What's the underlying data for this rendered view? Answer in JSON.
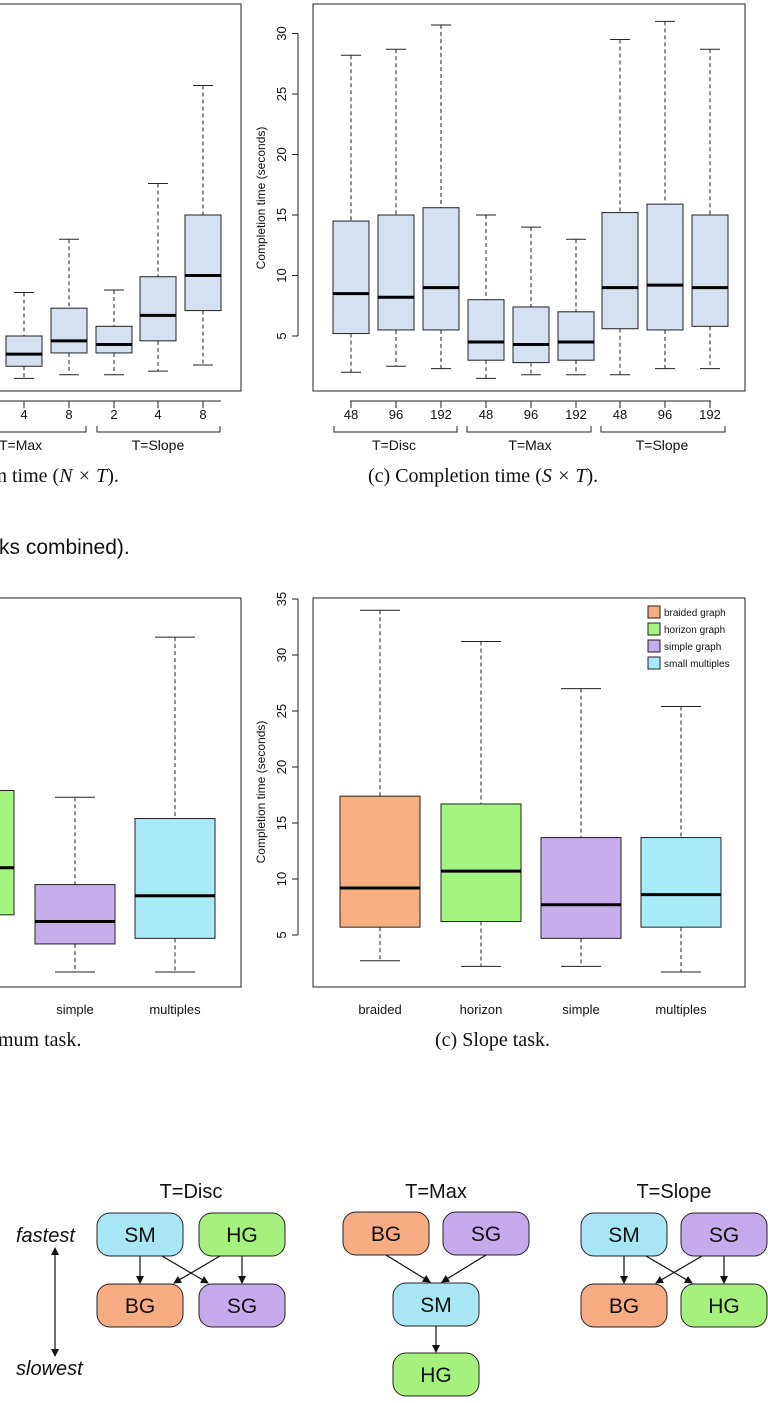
{
  "colors": {
    "box_fill": "#d5e0f1",
    "braided": "#f9ae82",
    "horizon": "#a4f480",
    "simple": "#c6aeea",
    "multiples": "#a8eaf8",
    "sm_node": "#a8e6f6",
    "hg_node": "#a6f17e",
    "bg_node": "#f7ac84",
    "sg_node": "#c5abeb"
  },
  "top_left": {
    "caption_tail": "n time (",
    "caption_math": "N × T",
    "caption_end": ").",
    "tick_labels": [
      "4",
      "8",
      "2",
      "4",
      "8"
    ],
    "group_labels": [
      "T=Max",
      "T=Slope"
    ]
  },
  "top_right": {
    "caption_prefix": "(c)  Completion time (",
    "caption_math": "S × T",
    "caption_end": ").",
    "ylabel": "Completion time (seconds)",
    "group_labels": [
      "T=Disc",
      "T=Max",
      "T=Slope"
    ]
  },
  "mid_text": "ks combined).",
  "mid_left": {
    "caption": "mum task.",
    "tick_labels": [
      "simple",
      "multiples"
    ]
  },
  "mid_right": {
    "caption": "(c)  Slope task.",
    "ylabel": "Completion time (seconds)"
  },
  "diagram": {
    "fastest": "fastest",
    "slowest": "slowest",
    "groups": [
      {
        "title": "T=Disc",
        "nodes": [
          "SM",
          "HG",
          "BG",
          "SG"
        ]
      },
      {
        "title": "T=Max",
        "nodes": [
          "BG",
          "SG",
          "SM",
          "HG"
        ]
      },
      {
        "title": "T=Slope",
        "nodes": [
          "SM",
          "SG",
          "BG",
          "HG"
        ]
      }
    ]
  },
  "chart_data": [
    {
      "type": "box",
      "panel": "top-left (cropped)",
      "categories": [
        "4",
        "8",
        "2",
        "4",
        "8"
      ],
      "groups": [
        "T=Max",
        "T=Max",
        "T=Slope",
        "T=Slope",
        "T=Slope"
      ],
      "boxes": [
        {
          "min": 1.5,
          "q1": 2.5,
          "median": 3.5,
          "q3": 5.0,
          "max": 8.6
        },
        {
          "min": 1.8,
          "q1": 3.6,
          "median": 4.6,
          "q3": 7.3,
          "max": 13.0
        },
        {
          "min": 1.8,
          "q1": 3.6,
          "median": 4.3,
          "q3": 5.8,
          "max": 8.8
        },
        {
          "min": 2.1,
          "q1": 4.6,
          "median": 6.7,
          "q3": 9.9,
          "max": 17.6
        },
        {
          "min": 2.6,
          "q1": 7.1,
          "median": 10.0,
          "q3": 15.0,
          "max": 25.7
        }
      ]
    },
    {
      "type": "box",
      "panel": "(c) Completion time (S x T)",
      "ylabel": "Completion time (seconds)",
      "ylim": [
        0,
        32
      ],
      "yticks": [
        5,
        10,
        15,
        20,
        25,
        30
      ],
      "categories": [
        "48",
        "96",
        "192",
        "48",
        "96",
        "192",
        "48",
        "96",
        "192"
      ],
      "groups": [
        "T=Disc",
        "T=Disc",
        "T=Disc",
        "T=Max",
        "T=Max",
        "T=Max",
        "T=Slope",
        "T=Slope",
        "T=Slope"
      ],
      "boxes": [
        {
          "min": 2.0,
          "q1": 5.2,
          "median": 8.5,
          "q3": 14.5,
          "max": 28.2
        },
        {
          "min": 2.5,
          "q1": 5.5,
          "median": 8.2,
          "q3": 15.0,
          "max": 28.7
        },
        {
          "min": 2.3,
          "q1": 5.5,
          "median": 9.0,
          "q3": 15.6,
          "max": 30.7
        },
        {
          "min": 1.5,
          "q1": 3.0,
          "median": 4.5,
          "q3": 8.0,
          "max": 15.0
        },
        {
          "min": 1.8,
          "q1": 2.8,
          "median": 4.3,
          "q3": 7.4,
          "max": 14.0
        },
        {
          "min": 1.8,
          "q1": 3.0,
          "median": 4.5,
          "q3": 7.0,
          "max": 13.0
        },
        {
          "min": 1.8,
          "q1": 5.6,
          "median": 9.0,
          "q3": 15.2,
          "max": 29.5
        },
        {
          "min": 2.3,
          "q1": 5.5,
          "median": 9.2,
          "q3": 15.9,
          "max": 31.0
        },
        {
          "min": 2.3,
          "q1": 5.8,
          "median": 9.0,
          "q3": 15.0,
          "max": 28.7
        }
      ]
    },
    {
      "type": "box",
      "panel": "middle-left (cropped)",
      "categories": [
        "simple",
        "multiples"
      ],
      "boxes": [
        {
          "min": 1.7,
          "q1": 4.2,
          "median": 6.2,
          "q3": 9.5,
          "max": 17.3
        },
        {
          "min": 1.7,
          "q1": 4.7,
          "median": 8.5,
          "q3": 15.4,
          "max": 31.6
        }
      ]
    },
    {
      "type": "box",
      "panel": "(c) Slope task",
      "ylabel": "Completion time (seconds)",
      "ylim": [
        0,
        35
      ],
      "yticks": [
        5,
        10,
        15,
        20,
        25,
        30,
        35
      ],
      "categories": [
        "braided",
        "horizon",
        "simple",
        "multiples"
      ],
      "legend": [
        "braided graph",
        "horizon graph",
        "simple graph",
        "small multiples"
      ],
      "legend_position": "top-right",
      "boxes": [
        {
          "min": 2.7,
          "q1": 5.7,
          "median": 9.2,
          "q3": 17.4,
          "max": 34.0
        },
        {
          "min": 2.2,
          "q1": 6.2,
          "median": 10.7,
          "q3": 16.7,
          "max": 31.2
        },
        {
          "min": 2.2,
          "q1": 4.7,
          "median": 7.7,
          "q3": 13.7,
          "max": 27.0
        },
        {
          "min": 1.7,
          "q1": 5.7,
          "median": 8.6,
          "q3": 13.7,
          "max": 25.4
        }
      ]
    }
  ]
}
